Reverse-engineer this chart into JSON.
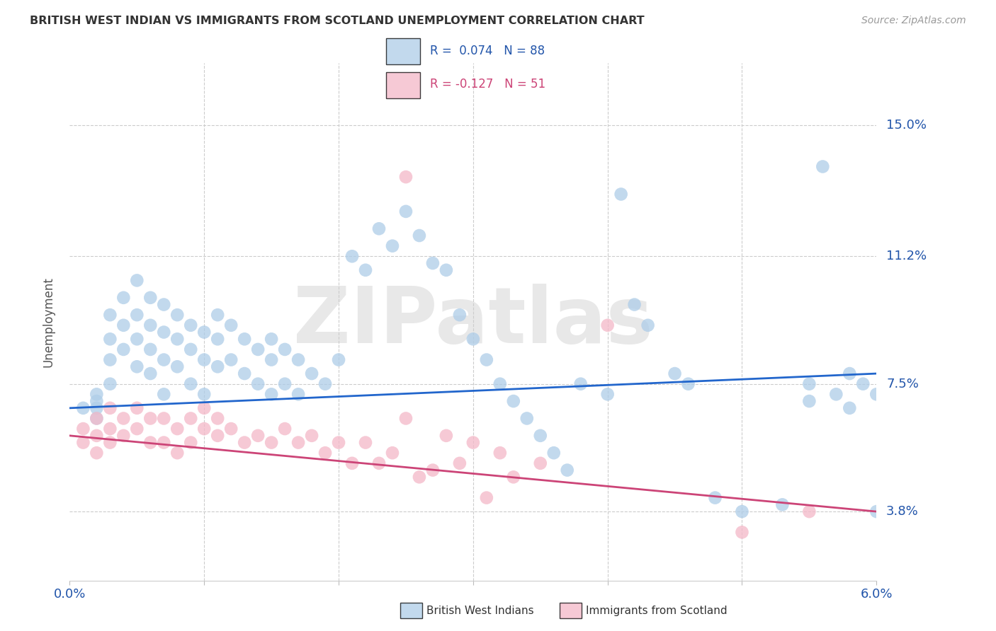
{
  "title": "BRITISH WEST INDIAN VS IMMIGRANTS FROM SCOTLAND UNEMPLOYMENT CORRELATION CHART",
  "source": "Source: ZipAtlas.com",
  "ylabel": "Unemployment",
  "ytick_labels": [
    "15.0%",
    "11.2%",
    "7.5%",
    "3.8%"
  ],
  "ytick_values": [
    0.15,
    0.112,
    0.075,
    0.038
  ],
  "xlim": [
    0.0,
    0.06
  ],
  "ylim": [
    0.018,
    0.168
  ],
  "legend_r1_text": "R =  0.074   N = 88",
  "legend_r2_text": "R = -0.127   N = 51",
  "blue_color": "#aecde8",
  "pink_color": "#f4b8c8",
  "line_blue": "#2266cc",
  "line_pink": "#cc4477",
  "watermark": "ZIPatlas",
  "blue_line_x": [
    0.0,
    0.06
  ],
  "blue_line_y": [
    0.068,
    0.078
  ],
  "pink_line_x": [
    0.0,
    0.06
  ],
  "pink_line_y": [
    0.06,
    0.038
  ],
  "blue_x": [
    0.001,
    0.002,
    0.002,
    0.002,
    0.002,
    0.003,
    0.003,
    0.003,
    0.003,
    0.004,
    0.004,
    0.004,
    0.005,
    0.005,
    0.005,
    0.005,
    0.006,
    0.006,
    0.006,
    0.006,
    0.007,
    0.007,
    0.007,
    0.007,
    0.008,
    0.008,
    0.008,
    0.009,
    0.009,
    0.009,
    0.01,
    0.01,
    0.01,
    0.011,
    0.011,
    0.011,
    0.012,
    0.012,
    0.013,
    0.013,
    0.014,
    0.014,
    0.015,
    0.015,
    0.015,
    0.016,
    0.016,
    0.017,
    0.017,
    0.018,
    0.019,
    0.02,
    0.021,
    0.022,
    0.023,
    0.024,
    0.025,
    0.026,
    0.027,
    0.028,
    0.029,
    0.03,
    0.031,
    0.032,
    0.033,
    0.034,
    0.035,
    0.036,
    0.037,
    0.038,
    0.04,
    0.041,
    0.042,
    0.043,
    0.045,
    0.046,
    0.048,
    0.05,
    0.053,
    0.055,
    0.055,
    0.056,
    0.057,
    0.058,
    0.058,
    0.059,
    0.06,
    0.06
  ],
  "blue_y": [
    0.068,
    0.07,
    0.065,
    0.068,
    0.072,
    0.095,
    0.088,
    0.082,
    0.075,
    0.1,
    0.092,
    0.085,
    0.105,
    0.095,
    0.088,
    0.08,
    0.1,
    0.092,
    0.085,
    0.078,
    0.098,
    0.09,
    0.082,
    0.072,
    0.095,
    0.088,
    0.08,
    0.092,
    0.085,
    0.075,
    0.09,
    0.082,
    0.072,
    0.095,
    0.088,
    0.08,
    0.092,
    0.082,
    0.088,
    0.078,
    0.085,
    0.075,
    0.088,
    0.082,
    0.072,
    0.085,
    0.075,
    0.082,
    0.072,
    0.078,
    0.075,
    0.082,
    0.112,
    0.108,
    0.12,
    0.115,
    0.125,
    0.118,
    0.11,
    0.108,
    0.095,
    0.088,
    0.082,
    0.075,
    0.07,
    0.065,
    0.06,
    0.055,
    0.05,
    0.075,
    0.072,
    0.13,
    0.098,
    0.092,
    0.078,
    0.075,
    0.042,
    0.038,
    0.04,
    0.075,
    0.07,
    0.138,
    0.072,
    0.068,
    0.078,
    0.075,
    0.072,
    0.038
  ],
  "pink_x": [
    0.001,
    0.001,
    0.002,
    0.002,
    0.002,
    0.003,
    0.003,
    0.003,
    0.004,
    0.004,
    0.005,
    0.005,
    0.006,
    0.006,
    0.007,
    0.007,
    0.008,
    0.008,
    0.009,
    0.009,
    0.01,
    0.01,
    0.011,
    0.011,
    0.012,
    0.013,
    0.014,
    0.015,
    0.016,
    0.017,
    0.018,
    0.019,
    0.02,
    0.021,
    0.022,
    0.023,
    0.024,
    0.025,
    0.025,
    0.026,
    0.027,
    0.028,
    0.029,
    0.03,
    0.031,
    0.032,
    0.033,
    0.035,
    0.04,
    0.05,
    0.055
  ],
  "pink_y": [
    0.062,
    0.058,
    0.065,
    0.06,
    0.055,
    0.068,
    0.062,
    0.058,
    0.065,
    0.06,
    0.068,
    0.062,
    0.065,
    0.058,
    0.065,
    0.058,
    0.062,
    0.055,
    0.065,
    0.058,
    0.068,
    0.062,
    0.065,
    0.06,
    0.062,
    0.058,
    0.06,
    0.058,
    0.062,
    0.058,
    0.06,
    0.055,
    0.058,
    0.052,
    0.058,
    0.052,
    0.055,
    0.065,
    0.135,
    0.048,
    0.05,
    0.06,
    0.052,
    0.058,
    0.042,
    0.055,
    0.048,
    0.052,
    0.092,
    0.032,
    0.038
  ]
}
